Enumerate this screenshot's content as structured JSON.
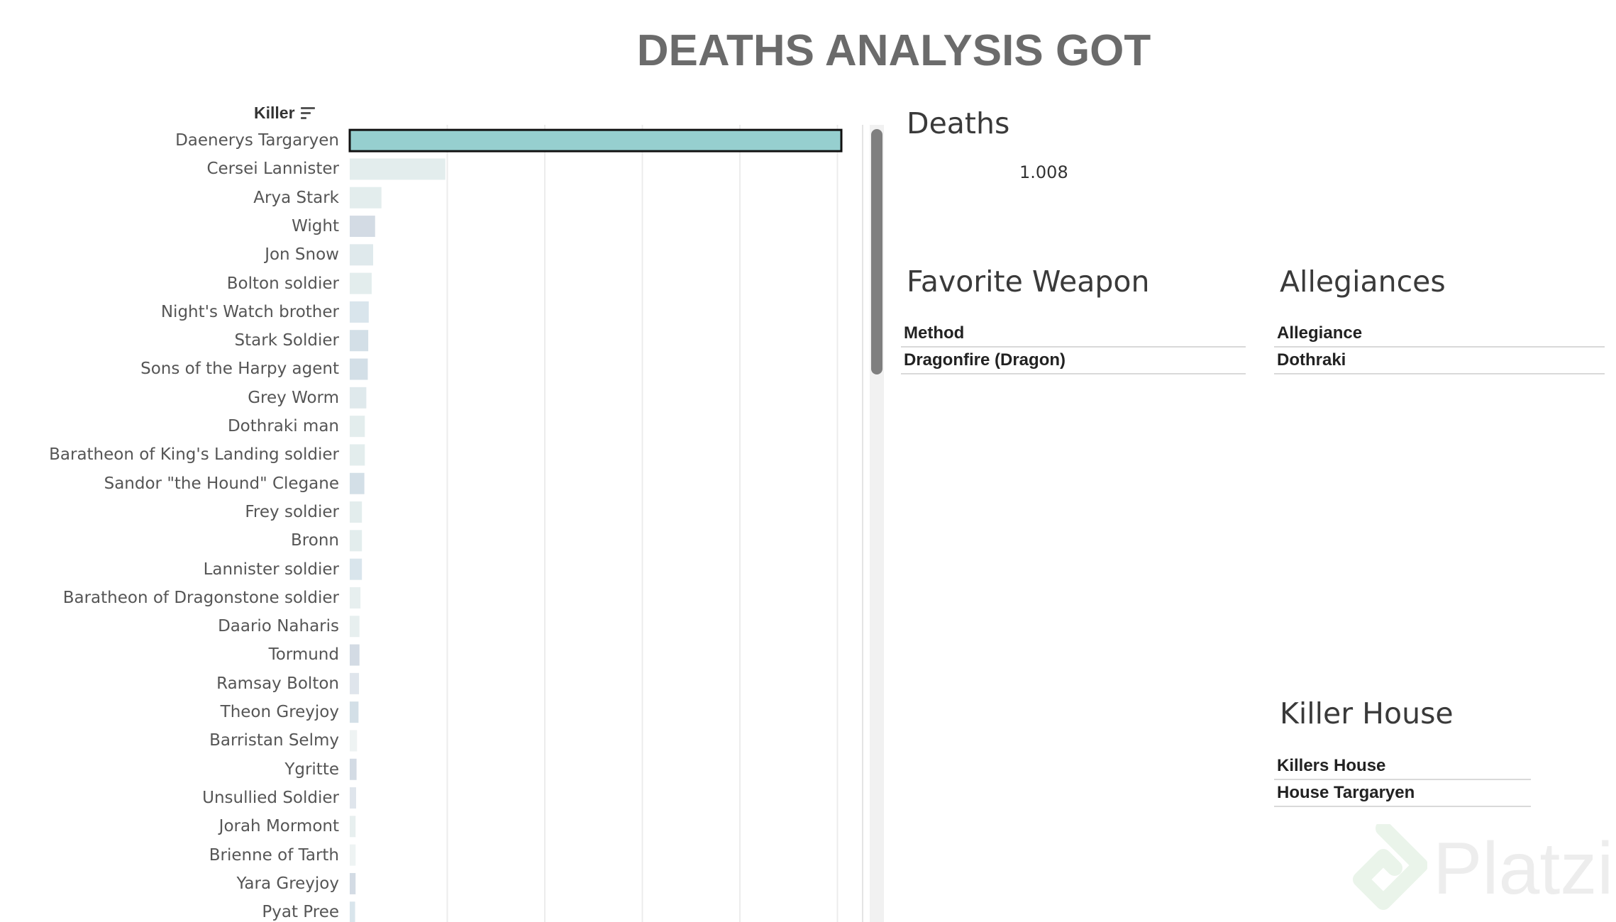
{
  "title": "DEATHS ANALYSIS GOT",
  "killer_chart": {
    "header": "Killer",
    "sort_icon": "sort-descending-icon"
  },
  "chart_data": {
    "type": "bar",
    "orientation": "horizontal",
    "xlim": [
      0,
      1050
    ],
    "grid": true,
    "categories": [
      "Daenerys Targaryen",
      "Cersei Lannister",
      "Arya Stark",
      "Wight",
      "Jon Snow",
      "Bolton soldier",
      "Night's Watch brother",
      "Stark Soldier",
      "Sons of the Harpy agent",
      "Grey Worm",
      "Dothraki man",
      "Baratheon of King's Landing soldier",
      "Sandor \"the Hound\" Clegane",
      "Frey soldier",
      "Bronn",
      "Lannister soldier",
      "Baratheon of Dragonstone soldier",
      "Daario Naharis",
      "Tormund",
      "Ramsay Bolton",
      "Theon Greyjoy",
      "Barristan Selmy",
      "Ygritte",
      "Unsullied Soldier",
      "Jorah Mormont",
      "Brienne of Tarth",
      "Yara Greyjoy",
      "Pyat Pree"
    ],
    "values": [
      1008,
      196,
      65,
      52,
      48,
      45,
      39,
      38,
      37,
      34,
      31,
      31,
      30,
      25,
      25,
      25,
      22,
      20,
      20,
      19,
      18,
      15,
      14,
      13,
      12,
      12,
      12,
      11
    ],
    "bar_colors": [
      "#96cfcf",
      "#e3eded",
      "#e3eded",
      "#d3dbe4",
      "#dfe9ec",
      "#e3eded",
      "#d9e5ec",
      "#d3dfe7",
      "#d3dfe7",
      "#dfe9ec",
      "#e3eded",
      "#e3eded",
      "#d3dfe7",
      "#e3eded",
      "#e3eded",
      "#d9e5ec",
      "#e7efef",
      "#e7efef",
      "#d3dbe4",
      "#dfe5ec",
      "#d3dfe7",
      "#eef3f3",
      "#d3dbe4",
      "#dfe5ec",
      "#e7efef",
      "#eef3f3",
      "#d3dbe4",
      "#d9e5ec"
    ],
    "highlight": "Daenerys Targaryen"
  },
  "deaths": {
    "title": "Deaths",
    "value": "1.008"
  },
  "favorite_weapon": {
    "title": "Favorite Weapon",
    "header": "Method",
    "value": "Dragonfire (Dragon)"
  },
  "allegiances": {
    "title": "Allegiances",
    "header": "Allegiance",
    "value": "Dothraki"
  },
  "killer_house": {
    "title": "Killer House",
    "header": "Killers House",
    "value": "House Targaryen"
  },
  "watermark": {
    "text": "Platzi",
    "icon": "platzi-logo-icon"
  }
}
